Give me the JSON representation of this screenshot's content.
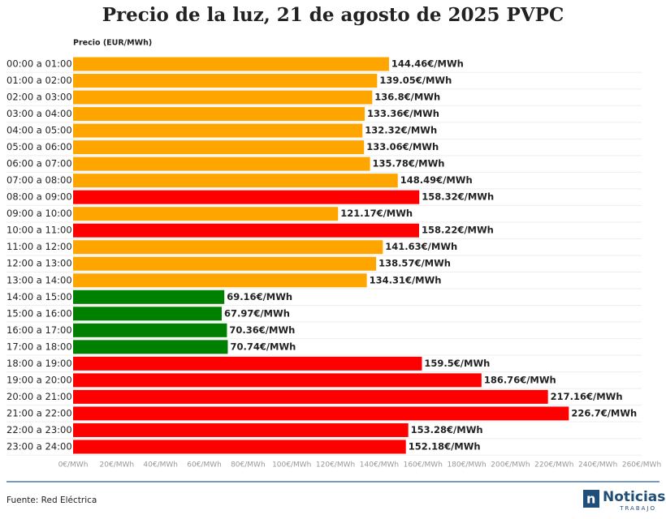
{
  "chart_data": {
    "type": "barh",
    "title": "Precio de la luz, 21 de agosto de 2025 PVPC",
    "y_label": "Precio (EUR/MWh)",
    "categories": [
      "00:00 a 01:00",
      "01:00 a 02:00",
      "02:00 a 03:00",
      "03:00 a 04:00",
      "04:00 a 05:00",
      "05:00 a 06:00",
      "06:00 a 07:00",
      "07:00 a 08:00",
      "08:00 a 09:00",
      "09:00 a 10:00",
      "10:00 a 11:00",
      "11:00 a 12:00",
      "12:00 a 13:00",
      "13:00 a 14:00",
      "14:00 a 15:00",
      "15:00 a 16:00",
      "16:00 a 17:00",
      "17:00 a 18:00",
      "18:00 a 19:00",
      "19:00 a 20:00",
      "20:00 a 21:00",
      "21:00 a 22:00",
      "22:00 a 23:00",
      "23:00 a 24:00"
    ],
    "values": [
      144.46,
      139.05,
      136.8,
      133.36,
      132.32,
      133.06,
      135.78,
      148.49,
      158.32,
      121.17,
      158.22,
      141.63,
      138.57,
      134.31,
      69.16,
      67.97,
      70.36,
      70.74,
      159.5,
      186.76,
      217.16,
      226.7,
      153.28,
      152.18
    ],
    "value_labels": [
      "144.46€/MWh",
      "139.05€/MWh",
      "136.8€/MWh",
      "133.36€/MWh",
      "132.32€/MWh",
      "133.06€/MWh",
      "135.78€/MWh",
      "148.49€/MWh",
      "158.32€/MWh",
      "121.17€/MWh",
      "158.22€/MWh",
      "141.63€/MWh",
      "138.57€/MWh",
      "134.31€/MWh",
      "69.16€/MWh",
      "67.97€/MWh",
      "70.36€/MWh",
      "70.74€/MWh",
      "159.5€/MWh",
      "186.76€/MWh",
      "217.16€/MWh",
      "226.7€/MWh",
      "153.28€/MWh",
      "152.18€/MWh"
    ],
    "colors": [
      "#ffa500",
      "#ffa500",
      "#ffa500",
      "#ffa500",
      "#ffa500",
      "#ffa500",
      "#ffa500",
      "#ffa500",
      "#ff0000",
      "#ffa500",
      "#ff0000",
      "#ffa500",
      "#ffa500",
      "#ffa500",
      "#008000",
      "#008000",
      "#008000",
      "#008000",
      "#ff0000",
      "#ff0000",
      "#ff0000",
      "#ff0000",
      "#ff0000",
      "#ff0000"
    ],
    "xlim": [
      0,
      260
    ],
    "xticks": [
      {
        "value": 0,
        "label": "0€/MWh"
      },
      {
        "value": 20,
        "label": "20€/MWh"
      },
      {
        "value": 40,
        "label": "40€/MWh"
      },
      {
        "value": 60,
        "label": "60€/MWh"
      },
      {
        "value": 80,
        "label": "80€/MWh"
      },
      {
        "value": 100,
        "label": "100€/MWh"
      },
      {
        "value": 120,
        "label": "120€/MWh"
      },
      {
        "value": 140,
        "label": "140€/MWh"
      },
      {
        "value": 160,
        "label": "160€/MWh"
      },
      {
        "value": 180,
        "label": "180€/MWh"
      },
      {
        "value": 200,
        "label": "200€/MWh"
      },
      {
        "value": 220,
        "label": "220€/MWh"
      },
      {
        "value": 240,
        "label": "240€/MWh"
      },
      {
        "value": 260,
        "label": "260€/MWh"
      }
    ]
  },
  "footer": {
    "source": "Fuente: Red Eléctrica",
    "logo": "Noticias",
    "logo_sub": "TRABAJO"
  }
}
